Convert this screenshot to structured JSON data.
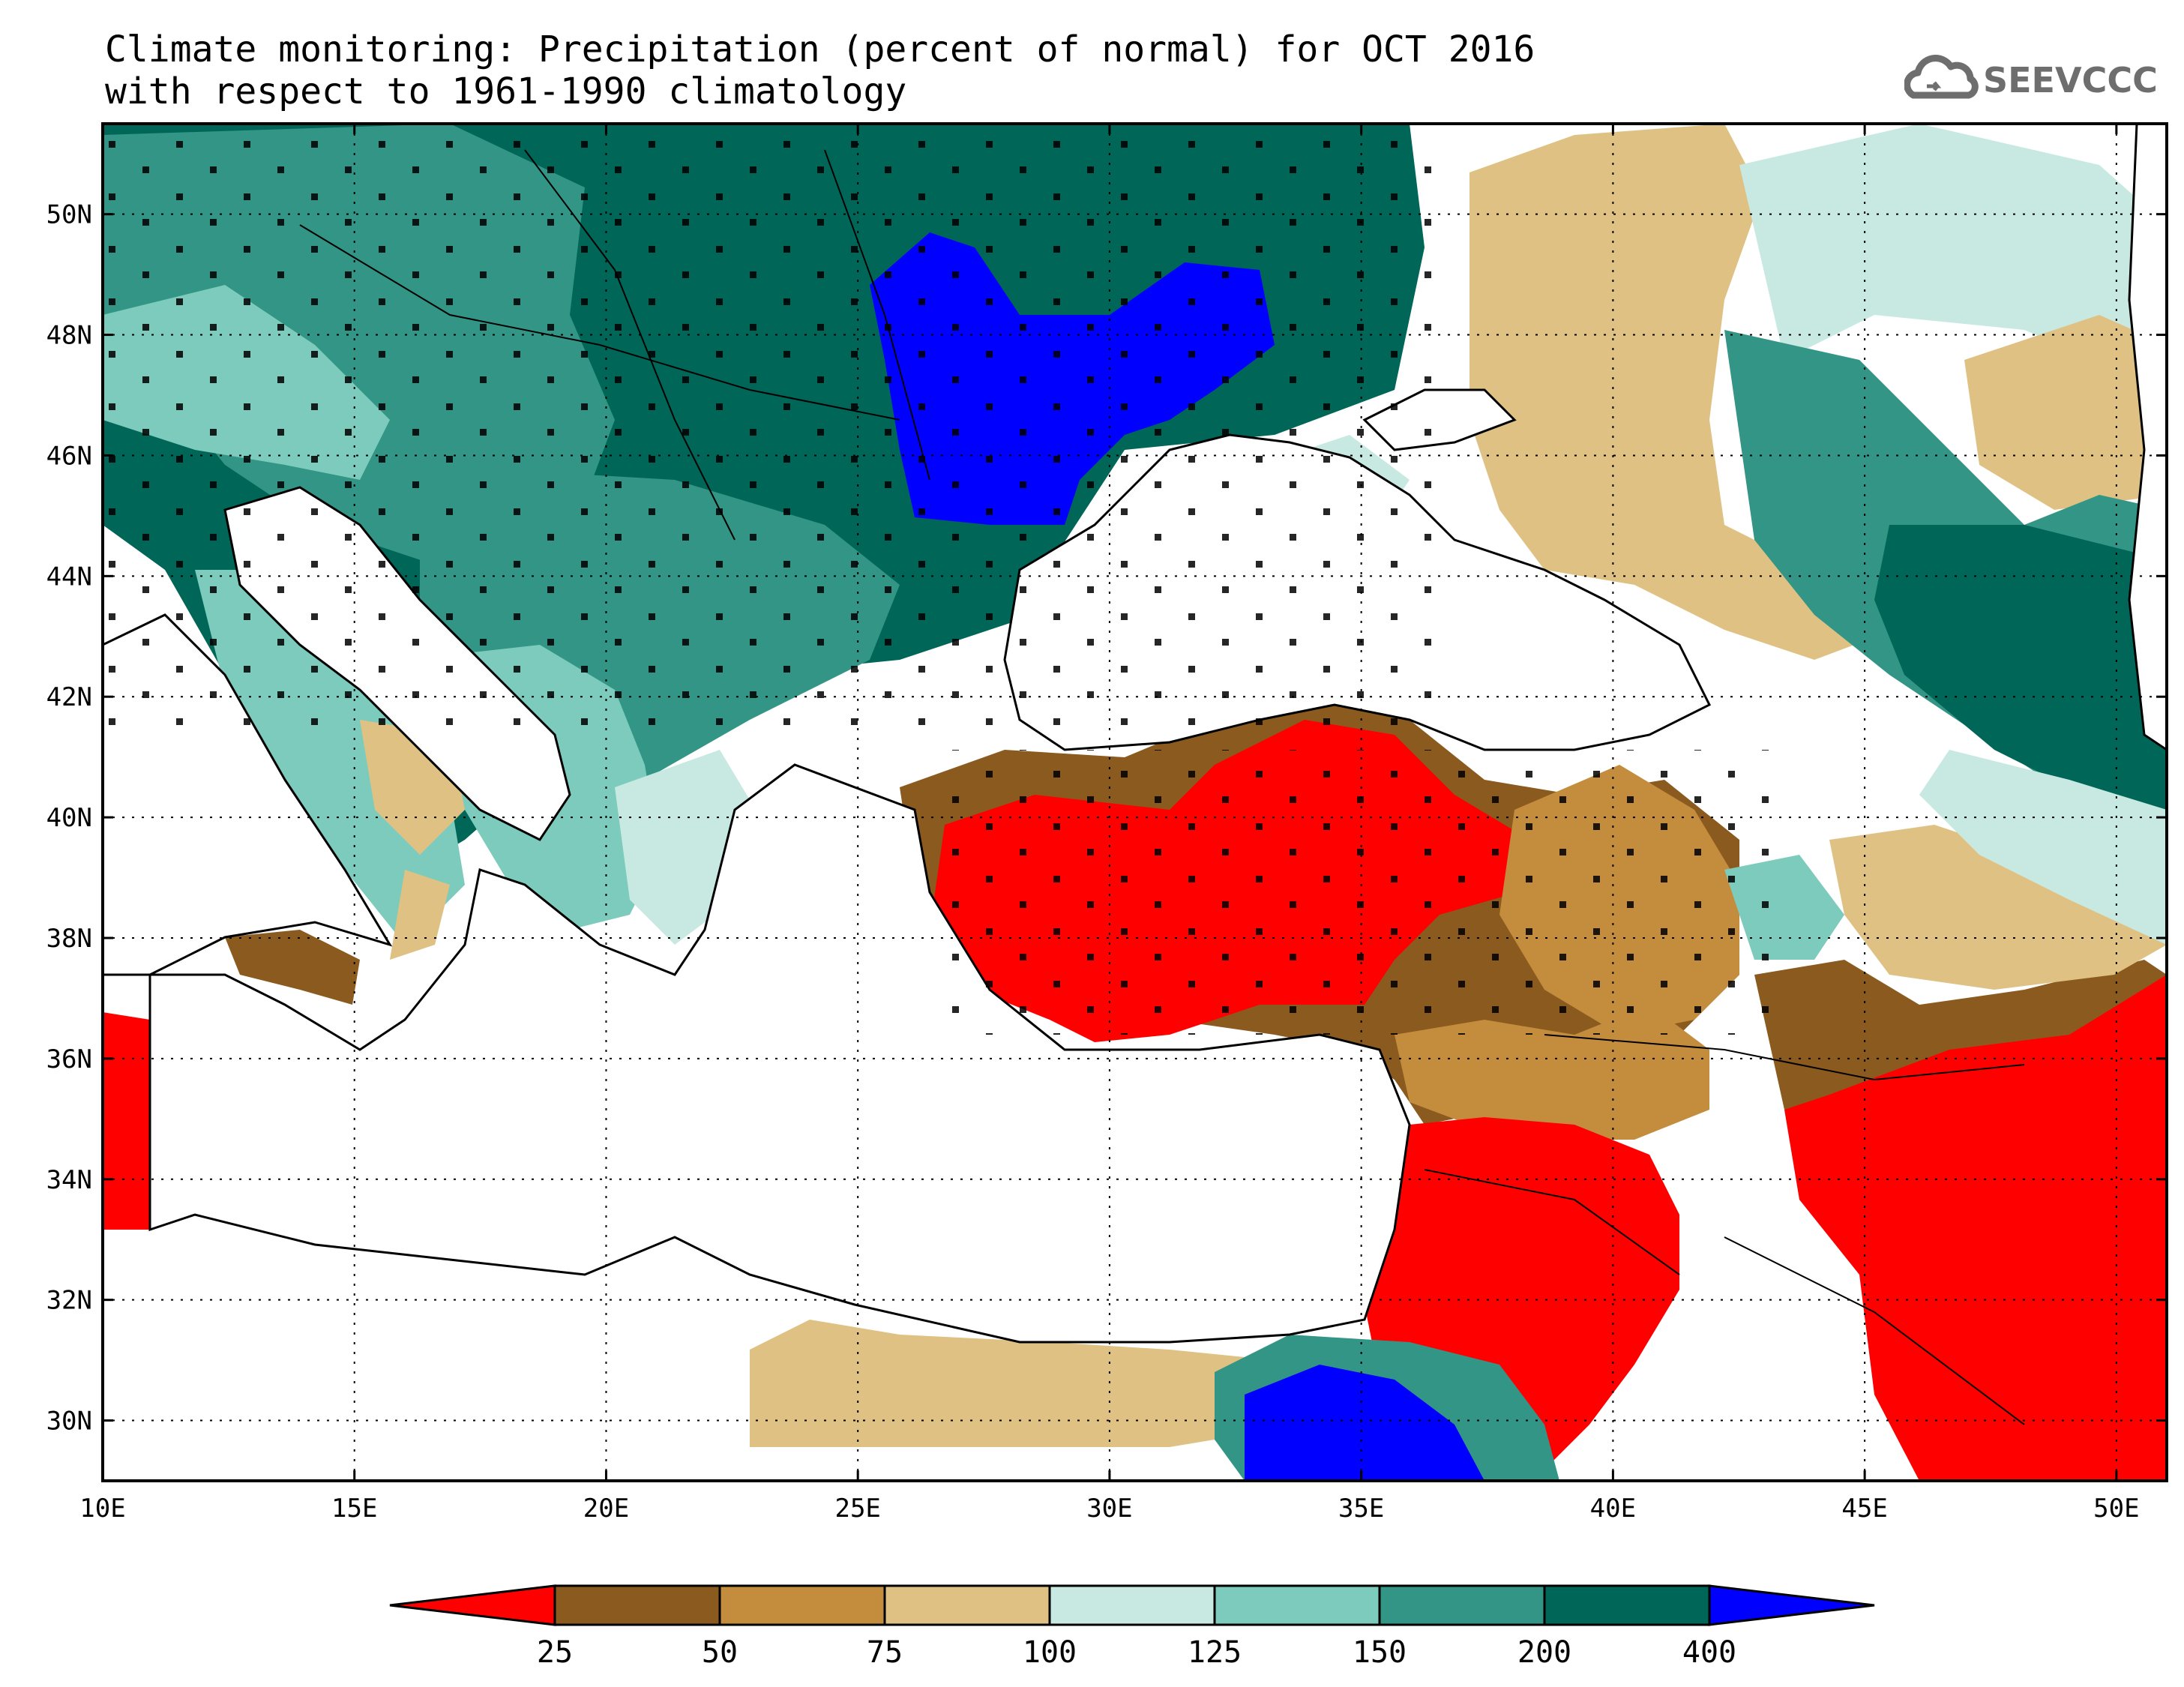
{
  "title": {
    "line1": "Climate monitoring: Precipitation (percent of normal) for OCT 2016",
    "line2": "with respect to 1961-1990 climatology"
  },
  "logo": {
    "text": "SEEVCCC",
    "icon": "cloud-icon"
  },
  "map": {
    "lon_range": [
      10,
      51
    ],
    "lat_range": [
      29,
      51.5
    ],
    "x_ticks": [
      "10E",
      "15E",
      "20E",
      "25E",
      "30E",
      "35E",
      "40E",
      "45E",
      "50E"
    ],
    "y_ticks": [
      "30N",
      "32N",
      "34N",
      "36N",
      "38N",
      "40N",
      "42N",
      "44N",
      "46N",
      "48N",
      "50N"
    ],
    "grid": "dotted"
  },
  "legend": {
    "bins": [
      {
        "label": "<25",
        "color": "#ff0000"
      },
      {
        "label": "25-50",
        "color": "#8b5a1e"
      },
      {
        "label": "50-75",
        "color": "#c48c3d"
      },
      {
        "label": "75-100",
        "color": "#dfc283"
      },
      {
        "label": "100-125",
        "color": "#c8e9e2"
      },
      {
        "label": "125-150",
        "color": "#7ccbbc"
      },
      {
        "label": "150-200",
        "color": "#329585"
      },
      {
        "label": "200-400",
        "color": "#006658"
      },
      {
        "label": ">400",
        "color": "#0000ff"
      }
    ],
    "ticks": [
      "25",
      "50",
      "75",
      "100",
      "125",
      "150",
      "200",
      "400"
    ]
  }
}
